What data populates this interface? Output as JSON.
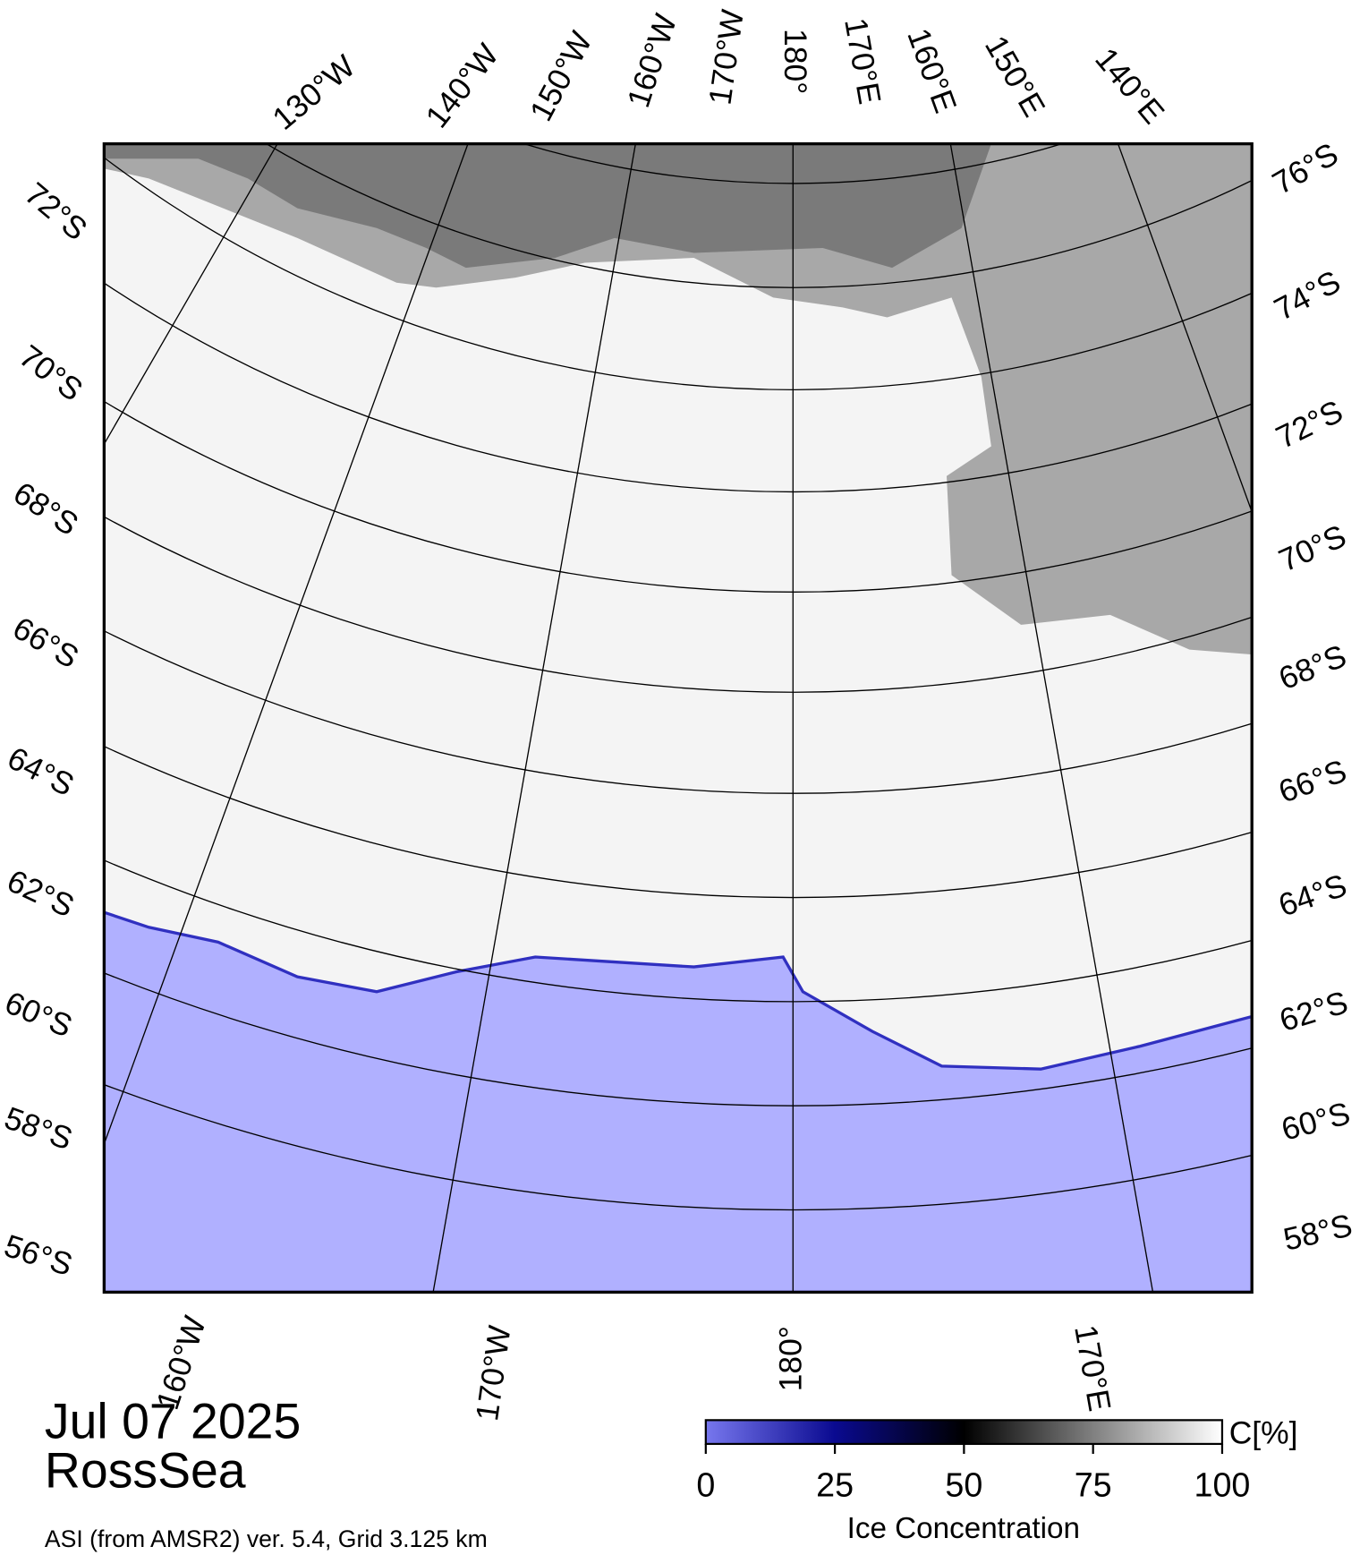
{
  "map": {
    "top_labels": [
      "130°W",
      "140°W",
      "150°W",
      "160°W",
      "170°W",
      "180°",
      "170°E",
      "160°E",
      "150°E",
      "140°E"
    ],
    "left_labels": [
      "72°S",
      "70°S",
      "68°S",
      "66°S",
      "64°S",
      "62°S",
      "60°S",
      "58°S",
      "56°S"
    ],
    "right_labels": [
      "76°S",
      "74°S",
      "72°S",
      "70°S",
      "68°S",
      "66°S",
      "64°S",
      "62°S",
      "60°S",
      "58°S"
    ],
    "bottom_labels": [
      "160°W",
      "170°W",
      "180°",
      "170°E"
    ]
  },
  "info": {
    "date": "Jul 07 2025",
    "region": "RossSea",
    "source": "ASI (from AMSR2) ver. 5.4,  Grid 3.125 km"
  },
  "colorbar": {
    "ticks": [
      0,
      25,
      50,
      75,
      100
    ],
    "unit": "C[%]",
    "label": "Ice Concentration"
  }
}
